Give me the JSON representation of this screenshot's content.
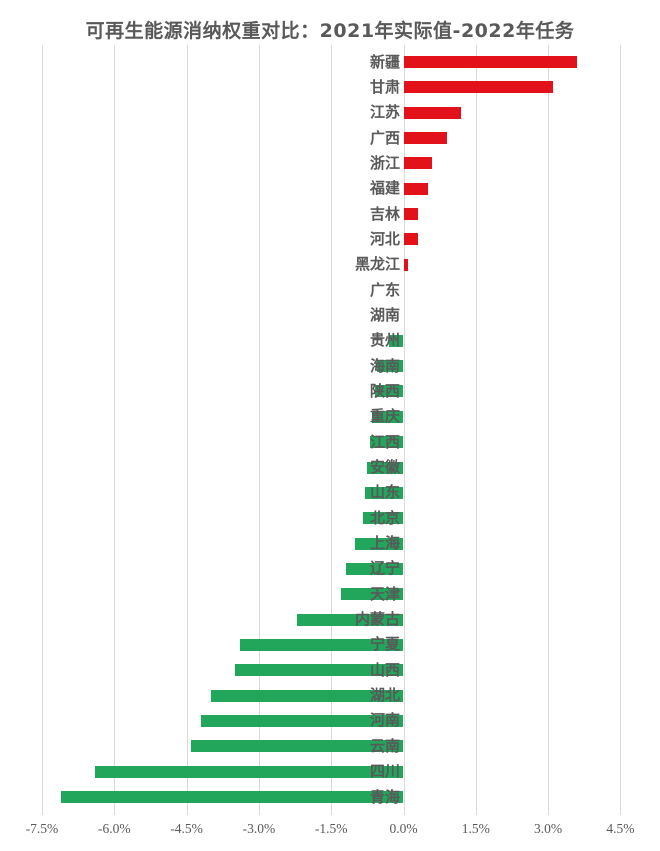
{
  "title": "可再生能源消纳权重对比：2021年实际值-2022年任务",
  "colors": {
    "positive_bar": "#e31119",
    "negative_bar": "#21a65b",
    "title_text": "#595959",
    "label_text": "#595959",
    "gridline": "#d9d9d9",
    "background": "#ffffff"
  },
  "chart_data": {
    "type": "bar",
    "orientation": "horizontal",
    "title": "可再生能源消纳权重对比：2021年实际值-2022年任务",
    "xlabel": "",
    "ylabel": "",
    "unit": "%",
    "xlim": [
      -7.5,
      4.5
    ],
    "xticks": [
      -7.5,
      -6.0,
      -4.5,
      -3.0,
      -1.5,
      0.0,
      1.5,
      3.0,
      4.5
    ],
    "xtick_labels": [
      "-7.5%",
      "-6.0%",
      "-4.5%",
      "-3.0%",
      "-1.5%",
      "0.0%",
      "1.5%",
      "3.0%",
      "4.5%"
    ],
    "grid": "vertical-only",
    "legend": "none",
    "categories": [
      "新疆",
      "甘肃",
      "江苏",
      "广西",
      "浙江",
      "福建",
      "吉林",
      "河北",
      "黑龙江",
      "广东",
      "湖南",
      "贵州",
      "海南",
      "陕西",
      "重庆",
      "江西",
      "安徽",
      "山东",
      "北京",
      "上海",
      "辽宁",
      "天津",
      "内蒙古",
      "宁夏",
      "山西",
      "湖北",
      "河南",
      "云南",
      "四川",
      "青海"
    ],
    "values": [
      3.6,
      3.1,
      1.2,
      0.9,
      0.6,
      0.5,
      0.3,
      0.3,
      0.1,
      0.0,
      0.0,
      -0.3,
      -0.55,
      -0.6,
      -0.65,
      -0.7,
      -0.75,
      -0.8,
      -0.85,
      -1.0,
      -1.2,
      -1.3,
      -2.2,
      -3.4,
      -3.5,
      -4.0,
      -4.2,
      -4.4,
      -6.4,
      -7.1
    ]
  }
}
